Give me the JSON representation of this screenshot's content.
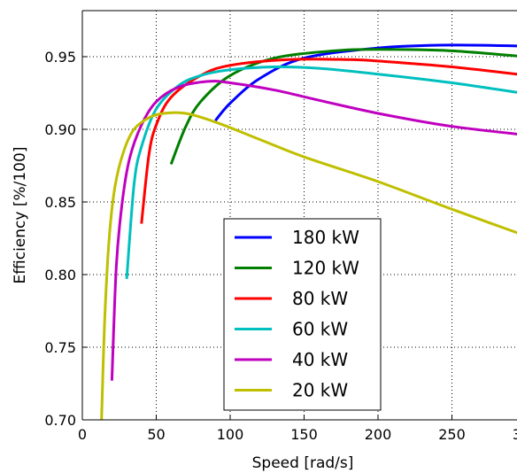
{
  "chart_data": {
    "type": "line",
    "title": "",
    "xlabel": "Speed [rad/s]",
    "ylabel": "Efficiency [%/100]",
    "xlim": [
      0,
      310
    ],
    "ylim": [
      0.7,
      0.97
    ],
    "x_ticks": [
      0,
      50,
      100,
      150,
      200,
      250,
      300
    ],
    "x_tick_labels": [
      "0",
      "50",
      "100",
      "150",
      "200",
      "250",
      "300"
    ],
    "y_ticks": [
      0.7,
      0.75,
      0.8,
      0.85,
      0.9,
      0.95
    ],
    "y_tick_labels": [
      "0.70",
      "0.75",
      "0.80",
      "0.85",
      "0.90",
      "0.95"
    ],
    "grid": true,
    "legend_position": "lower-center",
    "series": [
      {
        "name": "180 kW",
        "color": "#0000ff",
        "x": [
          90,
          100,
          120,
          150,
          200,
          250,
          310
        ],
        "y": [
          0.906,
          0.918,
          0.935,
          0.949,
          0.956,
          0.958,
          0.957
        ]
      },
      {
        "name": "120 kW",
        "color": "#007f00",
        "x": [
          60,
          70,
          80,
          100,
          130,
          170,
          200,
          250,
          310
        ],
        "y": [
          0.876,
          0.902,
          0.919,
          0.937,
          0.949,
          0.954,
          0.955,
          0.954,
          0.949
        ]
      },
      {
        "name": "80 kW",
        "color": "#ff0000",
        "x": [
          40,
          45,
          50,
          60,
          80,
          100,
          140,
          180,
          200,
          250,
          310
        ],
        "y": [
          0.835,
          0.882,
          0.903,
          0.922,
          0.937,
          0.944,
          0.948,
          0.948,
          0.947,
          0.943,
          0.936
        ]
      },
      {
        "name": "60 kW",
        "color": "#00bfbf",
        "x": [
          30,
          35,
          40,
          50,
          65,
          80,
          100,
          130,
          160,
          200,
          250,
          310
        ],
        "y": [
          0.797,
          0.862,
          0.888,
          0.914,
          0.93,
          0.937,
          0.941,
          0.943,
          0.942,
          0.938,
          0.932,
          0.923
        ]
      },
      {
        "name": "40 kW",
        "color": "#bf00bf",
        "x": [
          20,
          23,
          27,
          32,
          40,
          50,
          65,
          85,
          100,
          130,
          160,
          200,
          250,
          310
        ],
        "y": [
          0.727,
          0.806,
          0.85,
          0.88,
          0.903,
          0.919,
          0.929,
          0.933,
          0.932,
          0.927,
          0.92,
          0.911,
          0.902,
          0.895
        ]
      },
      {
        "name": "20 kW",
        "color": "#bfbf00",
        "x": [
          13,
          15,
          18,
          22,
          28,
          35,
          45,
          55,
          70,
          90,
          120,
          150,
          200,
          250,
          310
        ],
        "y": [
          0.7,
          0.765,
          0.823,
          0.86,
          0.885,
          0.9,
          0.908,
          0.911,
          0.911,
          0.905,
          0.893,
          0.881,
          0.864,
          0.845,
          0.823
        ]
      }
    ]
  }
}
